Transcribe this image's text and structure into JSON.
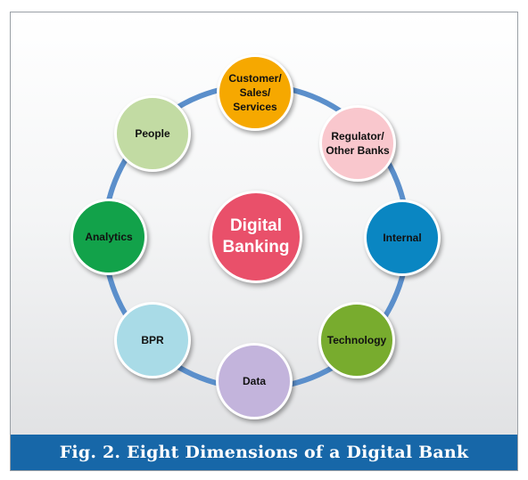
{
  "figure": {
    "caption": "Fig. 2. Eight Dimensions of a Digital Bank",
    "center": {
      "label": "Digital\nBanking",
      "color": "#e9506a"
    },
    "ring_color": "#5b8fcb",
    "nodes": [
      {
        "id": "customer",
        "label": "Customer/\nSales/\nServices",
        "color": "#f6a800"
      },
      {
        "id": "regulator",
        "label": "Regulator/\nOther Banks",
        "color": "#f9c7cd"
      },
      {
        "id": "internal",
        "label": "Internal",
        "color": "#0a86c2"
      },
      {
        "id": "technology",
        "label": "Technology",
        "color": "#78ac2e"
      },
      {
        "id": "data",
        "label": "Data",
        "color": "#c3b4dc"
      },
      {
        "id": "bpr",
        "label": "BPR",
        "color": "#a9dbe7"
      },
      {
        "id": "analytics",
        "label": "Analytics",
        "color": "#12a24a"
      },
      {
        "id": "people",
        "label": "People",
        "color": "#c2dba3"
      }
    ]
  }
}
